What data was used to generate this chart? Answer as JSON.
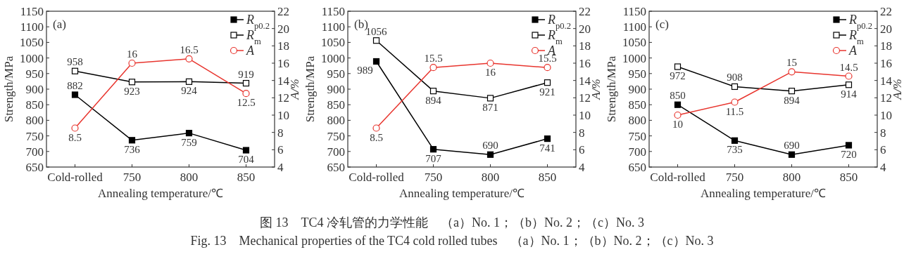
{
  "chart_data": [
    {
      "type": "line",
      "title": "(a)",
      "xlabel": "Annealing temperature/℃",
      "ylabel": "Strength/MPa",
      "y2label": "A/%",
      "categories": [
        "Cold-rolled",
        "750",
        "800",
        "850"
      ],
      "series": [
        {
          "name": "R$_{p0.2}$",
          "color": "#000000",
          "marker": "square",
          "values": [
            882,
            736,
            759,
            704
          ]
        },
        {
          "name": "R$_{m}$",
          "color": "#000000",
          "marker": "square",
          "values": [
            958,
            923,
            924,
            919
          ]
        },
        {
          "name": "A",
          "color": "#e8352e",
          "marker": "circle",
          "axis": "y2",
          "values": [
            8.5,
            16,
            16.5,
            12.5
          ]
        }
      ],
      "ylim": [
        650,
        1150
      ],
      "yticks": [
        650,
        700,
        750,
        800,
        850,
        900,
        950,
        1000,
        1050,
        1100,
        1150
      ],
      "y2lim": [
        4,
        22
      ],
      "y2ticks": [
        4,
        6,
        8,
        10,
        12,
        14,
        16,
        18,
        20,
        22
      ],
      "data_labels": true,
      "legend": "top right",
      "grid": false,
      "annotations": [
        "图 13　TC4 冷轧管的力学性能　（a）No. 1；（b）No. 2；（c）No. 3",
        "Fig. 13　Mechanical properties of the TC4 cold rolled tubes　（a）No. 1；（b）No. 2；（c）No. 3"
      ]
    },
    {
      "type": "line",
      "title": "(b)",
      "xlabel": "Annealing temperature/℃",
      "ylabel": "Strength/MPa",
      "y2label": "A/%",
      "categories": [
        "Cold-rolled",
        "750",
        "800",
        "850"
      ],
      "series": [
        {
          "name": "R$_{p0.2}$",
          "color": "#000000",
          "marker": "square",
          "values": [
            989,
            707,
            690,
            741
          ]
        },
        {
          "name": "R$_{m}$",
          "color": "#000000",
          "marker": "square",
          "values": [
            1056,
            894,
            871,
            921
          ]
        },
        {
          "name": "A",
          "color": "#e8352e",
          "marker": "circle",
          "axis": "y2",
          "values": [
            8.5,
            15.5,
            16,
            15.5
          ]
        }
      ],
      "ylim": [
        650,
        1150
      ],
      "yticks": [
        650,
        700,
        750,
        800,
        850,
        900,
        950,
        1000,
        1050,
        1100,
        1150
      ],
      "y2lim": [
        4,
        22
      ],
      "y2ticks": [
        4,
        6,
        8,
        10,
        12,
        14,
        16,
        18,
        20,
        22
      ],
      "data_labels": true,
      "legend": "top right",
      "grid": false
    },
    {
      "type": "line",
      "title": "(c)",
      "xlabel": "Annealing temperature/℃",
      "ylabel": "Strength/MPa",
      "y2label": "A/%",
      "categories": [
        "Cold-rolled",
        "750",
        "800",
        "850"
      ],
      "series": [
        {
          "name": "R$_{p0.2}$",
          "color": "#000000",
          "marker": "square",
          "values": [
            850,
            735,
            690,
            720
          ]
        },
        {
          "name": "R$_{m}$",
          "color": "#000000",
          "marker": "square",
          "values": [
            972,
            908,
            894,
            914
          ]
        },
        {
          "name": "A",
          "color": "#e8352e",
          "marker": "circle",
          "axis": "y2",
          "values": [
            10,
            11.5,
            15,
            14.5
          ]
        }
      ],
      "ylim": [
        650,
        1150
      ],
      "yticks": [
        650,
        700,
        750,
        800,
        850,
        900,
        950,
        1000,
        1050,
        1100,
        1150
      ],
      "y2lim": [
        4,
        22
      ],
      "y2ticks": [
        4,
        6,
        8,
        10,
        12,
        14,
        16,
        18,
        20,
        22
      ],
      "data_labels": true,
      "legend": "top right",
      "grid": false
    }
  ]
}
